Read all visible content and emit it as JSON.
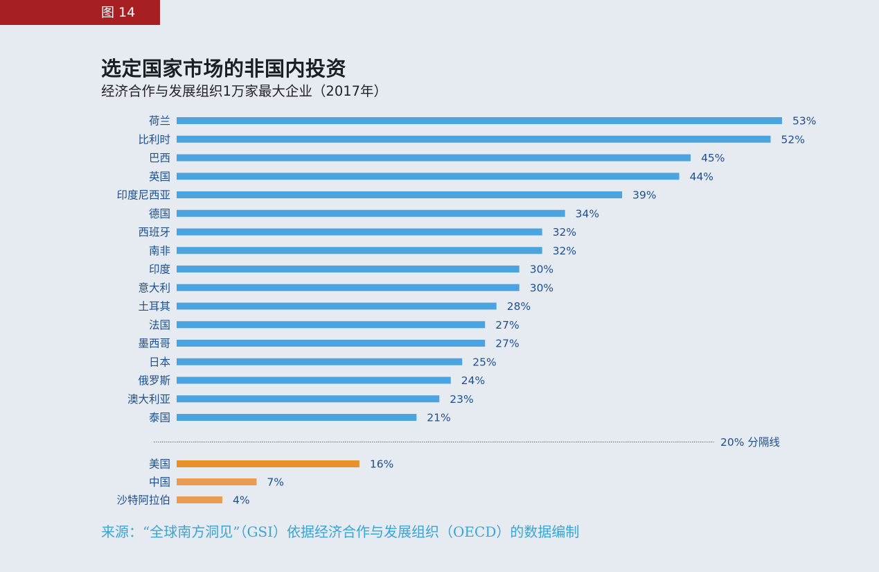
{
  "figure_tag": "图 14",
  "colors": {
    "tag_bg": "#a81f23",
    "bar_blue": "#4ba3e0",
    "bar_orange_dark": "#e8902a",
    "bar_orange_light": "#eb9b52",
    "label_text": "#1f4e8c",
    "source_text": "#3aa4d4",
    "divider": "#3f6fb8"
  },
  "chart_data": {
    "type": "bar",
    "orientation": "horizontal",
    "title": "选定国家市场的非国内投资",
    "subtitle": "经济合作与发展组织1万家最大企业（2017年）",
    "categories": [
      "荷兰",
      "比利时",
      "巴西",
      "英国",
      "印度尼西亚",
      "德国",
      "西班牙",
      "南非",
      "印度",
      "意大利",
      "土耳其",
      "法国",
      "墨西哥",
      "日本",
      "俄罗斯",
      "澳大利亚",
      "泰国",
      "美国",
      "中国",
      "沙特阿拉伯"
    ],
    "values": [
      53,
      52,
      45,
      44,
      39,
      34,
      32,
      32,
      30,
      30,
      28,
      27,
      27,
      25,
      24,
      23,
      21,
      16,
      7,
      4
    ],
    "value_labels": [
      "53%",
      "52%",
      "45%",
      "44%",
      "39%",
      "34%",
      "32%",
      "32%",
      "30%",
      "30%",
      "28%",
      "27%",
      "27%",
      "25%",
      "24%",
      "23%",
      "21%",
      "16%",
      "7%",
      "4%"
    ],
    "group": [
      "above",
      "above",
      "above",
      "above",
      "above",
      "above",
      "above",
      "above",
      "above",
      "above",
      "above",
      "above",
      "above",
      "above",
      "above",
      "above",
      "above",
      "below",
      "below",
      "below"
    ],
    "reference_line": {
      "value": 20,
      "label": "20% 分隔线"
    },
    "xlim": [
      0,
      53
    ],
    "grid": false
  },
  "source": "来源：“全球南方洞见”（GSI）依据经济合作与发展组织（OECD）的数据编制"
}
